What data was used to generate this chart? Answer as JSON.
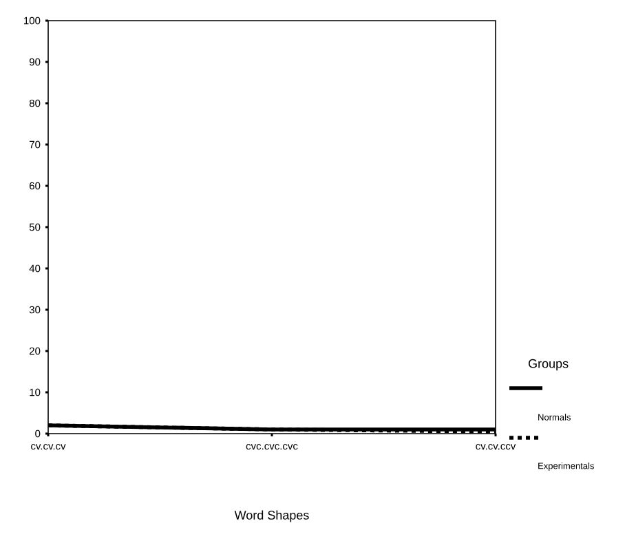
{
  "chart_data": {
    "type": "line",
    "xlabel": "Word Shapes",
    "legend_title": "Groups",
    "categories": [
      "cv.cv.cv",
      "cvc.cvc.cvc",
      "cv.cv.ccv"
    ],
    "series": [
      {
        "name": "Normals",
        "color": "#000000",
        "line_style": "solid",
        "values": [
          2,
          1,
          1
        ]
      },
      {
        "name": "Experimentals",
        "color": "#000000",
        "line_style": "dotted",
        "values": [
          2,
          1,
          0.5
        ]
      }
    ],
    "ylim": [
      0,
      100
    ],
    "yticks": [
      0,
      10,
      20,
      30,
      40,
      50,
      60,
      70,
      80,
      90,
      100
    ],
    "grid": false,
    "legend": "right",
    "marker": "none"
  }
}
